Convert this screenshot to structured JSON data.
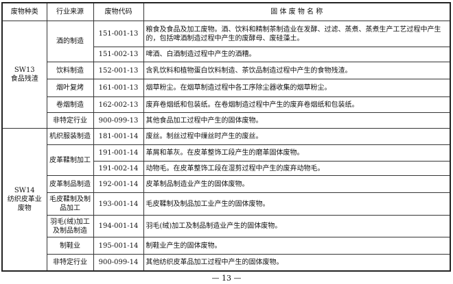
{
  "headers": {
    "category": "废物种类",
    "source": "行业来源",
    "code": "废物代码",
    "name": "固 体 废 物 名 称"
  },
  "groups": [
    {
      "category_code": "SW13",
      "category_name": "食品残渣",
      "rows": [
        {
          "source": "酒的制造",
          "code": "151-001-13",
          "name": "粮食及食品及加工废物。酒、饮料和精制茶制造业在发酵、过滤、蒸煮、蒸煮生产工艺过程中产生的，包括啤酒制造过程中产生的废酵母、废硅藻土。"
        },
        {
          "source": "",
          "code": "151-002-13",
          "name": "啤酒、白酒制造过程中产生的酒糟。"
        },
        {
          "source": "饮料制造",
          "code": "152-001-13",
          "name": "含乳饮料和植物蛋白饮料制造、茶饮品制造过程中产生的食物残渣。"
        },
        {
          "source": "烟叶复烤",
          "code": "161-001-13",
          "name": "烟草粉尘。在烟草制造过程中各工序除尘器收集的烟草粉尘。"
        },
        {
          "source": "卷烟制造",
          "code": "162-002-13",
          "name": "废弃卷烟纸和包装纸。在卷烟制造过程中产生的废弃卷烟纸和包装纸。"
        },
        {
          "source": "非特定行业",
          "code": "900-099-13",
          "name": "其他食品加工过程中产生的固体废物。"
        }
      ]
    },
    {
      "category_code": "SW14",
      "category_name": "纺织皮革业废物",
      "rows": [
        {
          "source": "机织服装制造",
          "code": "181-001-14",
          "name": "废丝。制丝过程中缫丝时产生的废丝。"
        },
        {
          "source": "皮革鞣制加工",
          "code": "191-001-14",
          "name": "革屑和革灰。在皮革整饰工段产生的磨革固体废物。"
        },
        {
          "source": "",
          "code": "191-002-14",
          "name": "动物毛。在皮革整饰工段在湿剪过程中产生的废弃动物毛。"
        },
        {
          "source": "皮革制品制造",
          "code": "192-001-14",
          "name": "皮革制品制造业产生的固体废物。"
        },
        {
          "source": "毛皮鞣制及制品加工",
          "code": "193-001-14",
          "name": "毛皮鞣制及制品加工业产生的固体废物。"
        },
        {
          "source": "羽毛(绒)加工及制品制造",
          "code": "194-001-14",
          "name": "羽毛(绒)加工及制品制造业产生的固体废物。"
        },
        {
          "source": "制鞋业",
          "code": "195-001-14",
          "name": "制鞋业产生的固体废物。"
        },
        {
          "source": "非特定行业",
          "code": "900-099-14",
          "name": "其他纺织皮革品加工过程中产生的固体废物。"
        }
      ]
    }
  ],
  "page_number": "— 13 —"
}
